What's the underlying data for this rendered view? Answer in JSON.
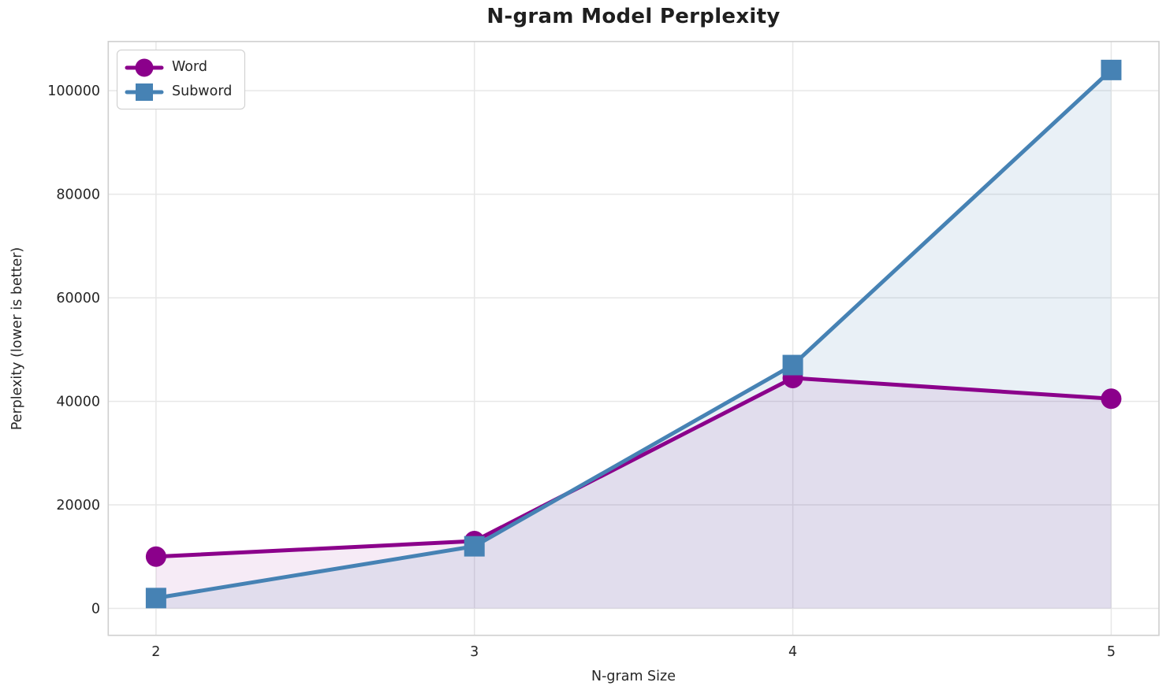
{
  "chart_data": {
    "type": "line",
    "title": "N-gram Model Perplexity",
    "xlabel": "N-gram Size",
    "ylabel": "Perplexity (lower is better)",
    "x": [
      2,
      3,
      4,
      5
    ],
    "series": [
      {
        "name": "Word",
        "color": "#8B008B",
        "marker": "circle",
        "values": [
          10000,
          13000,
          44500,
          40500
        ],
        "fill_opacity": 0.08
      },
      {
        "name": "Subword",
        "color": "#4682B4",
        "marker": "square",
        "values": [
          2000,
          12000,
          47000,
          104000
        ],
        "fill_opacity": 0.12
      }
    ],
    "xticks": [
      "2",
      "3",
      "4",
      "5"
    ],
    "xtick_values": [
      2,
      3,
      4,
      5
    ],
    "yticks": [
      "0",
      "20000",
      "40000",
      "60000",
      "80000",
      "100000"
    ],
    "ytick_values": [
      0,
      20000,
      40000,
      60000,
      80000,
      100000
    ],
    "xlim": [
      1.85,
      5.15
    ],
    "ylim": [
      -5200,
      109500
    ],
    "fill_baseline": 0,
    "grid": true,
    "legend_position": "upper-left",
    "style": {
      "grid_color": "#e7e7e7",
      "spine_color": "#cfcfcf",
      "text_color": "#262626",
      "background": "#ffffff",
      "line_width": 5,
      "marker_size": 26
    }
  }
}
